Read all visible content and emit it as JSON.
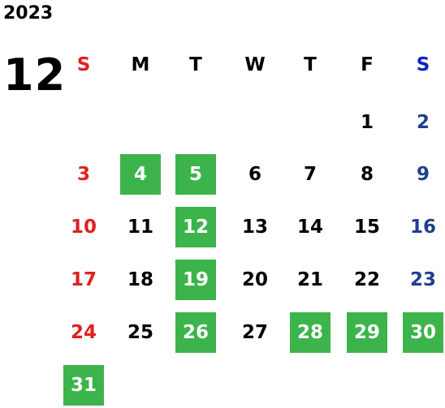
{
  "calendar": {
    "year": "2023",
    "month": "12",
    "weekdays": [
      "S",
      "M",
      "T",
      "W",
      "T",
      "F",
      "S"
    ],
    "weeks": [
      [
        null,
        null,
        null,
        null,
        null,
        "1",
        "2"
      ],
      [
        "3",
        "4",
        "5",
        "6",
        "7",
        "8",
        "9"
      ],
      [
        "10",
        "11",
        "12",
        "13",
        "14",
        "15",
        "16"
      ],
      [
        "17",
        "18",
        "19",
        "20",
        "21",
        "22",
        "23"
      ],
      [
        "24",
        "25",
        "26",
        "27",
        "28",
        "29",
        "30"
      ],
      [
        "31",
        null,
        null,
        null,
        null,
        null,
        null
      ]
    ],
    "highlighted_days": [
      "4",
      "5",
      "12",
      "19",
      "26",
      "28",
      "29",
      "30",
      "31"
    ],
    "colors": {
      "highlight": "#3cb44b",
      "sunday": "#e02020",
      "saturday": "#1f3f8f",
      "saturday_header": "#1020c8",
      "weekday": "#000000"
    }
  }
}
